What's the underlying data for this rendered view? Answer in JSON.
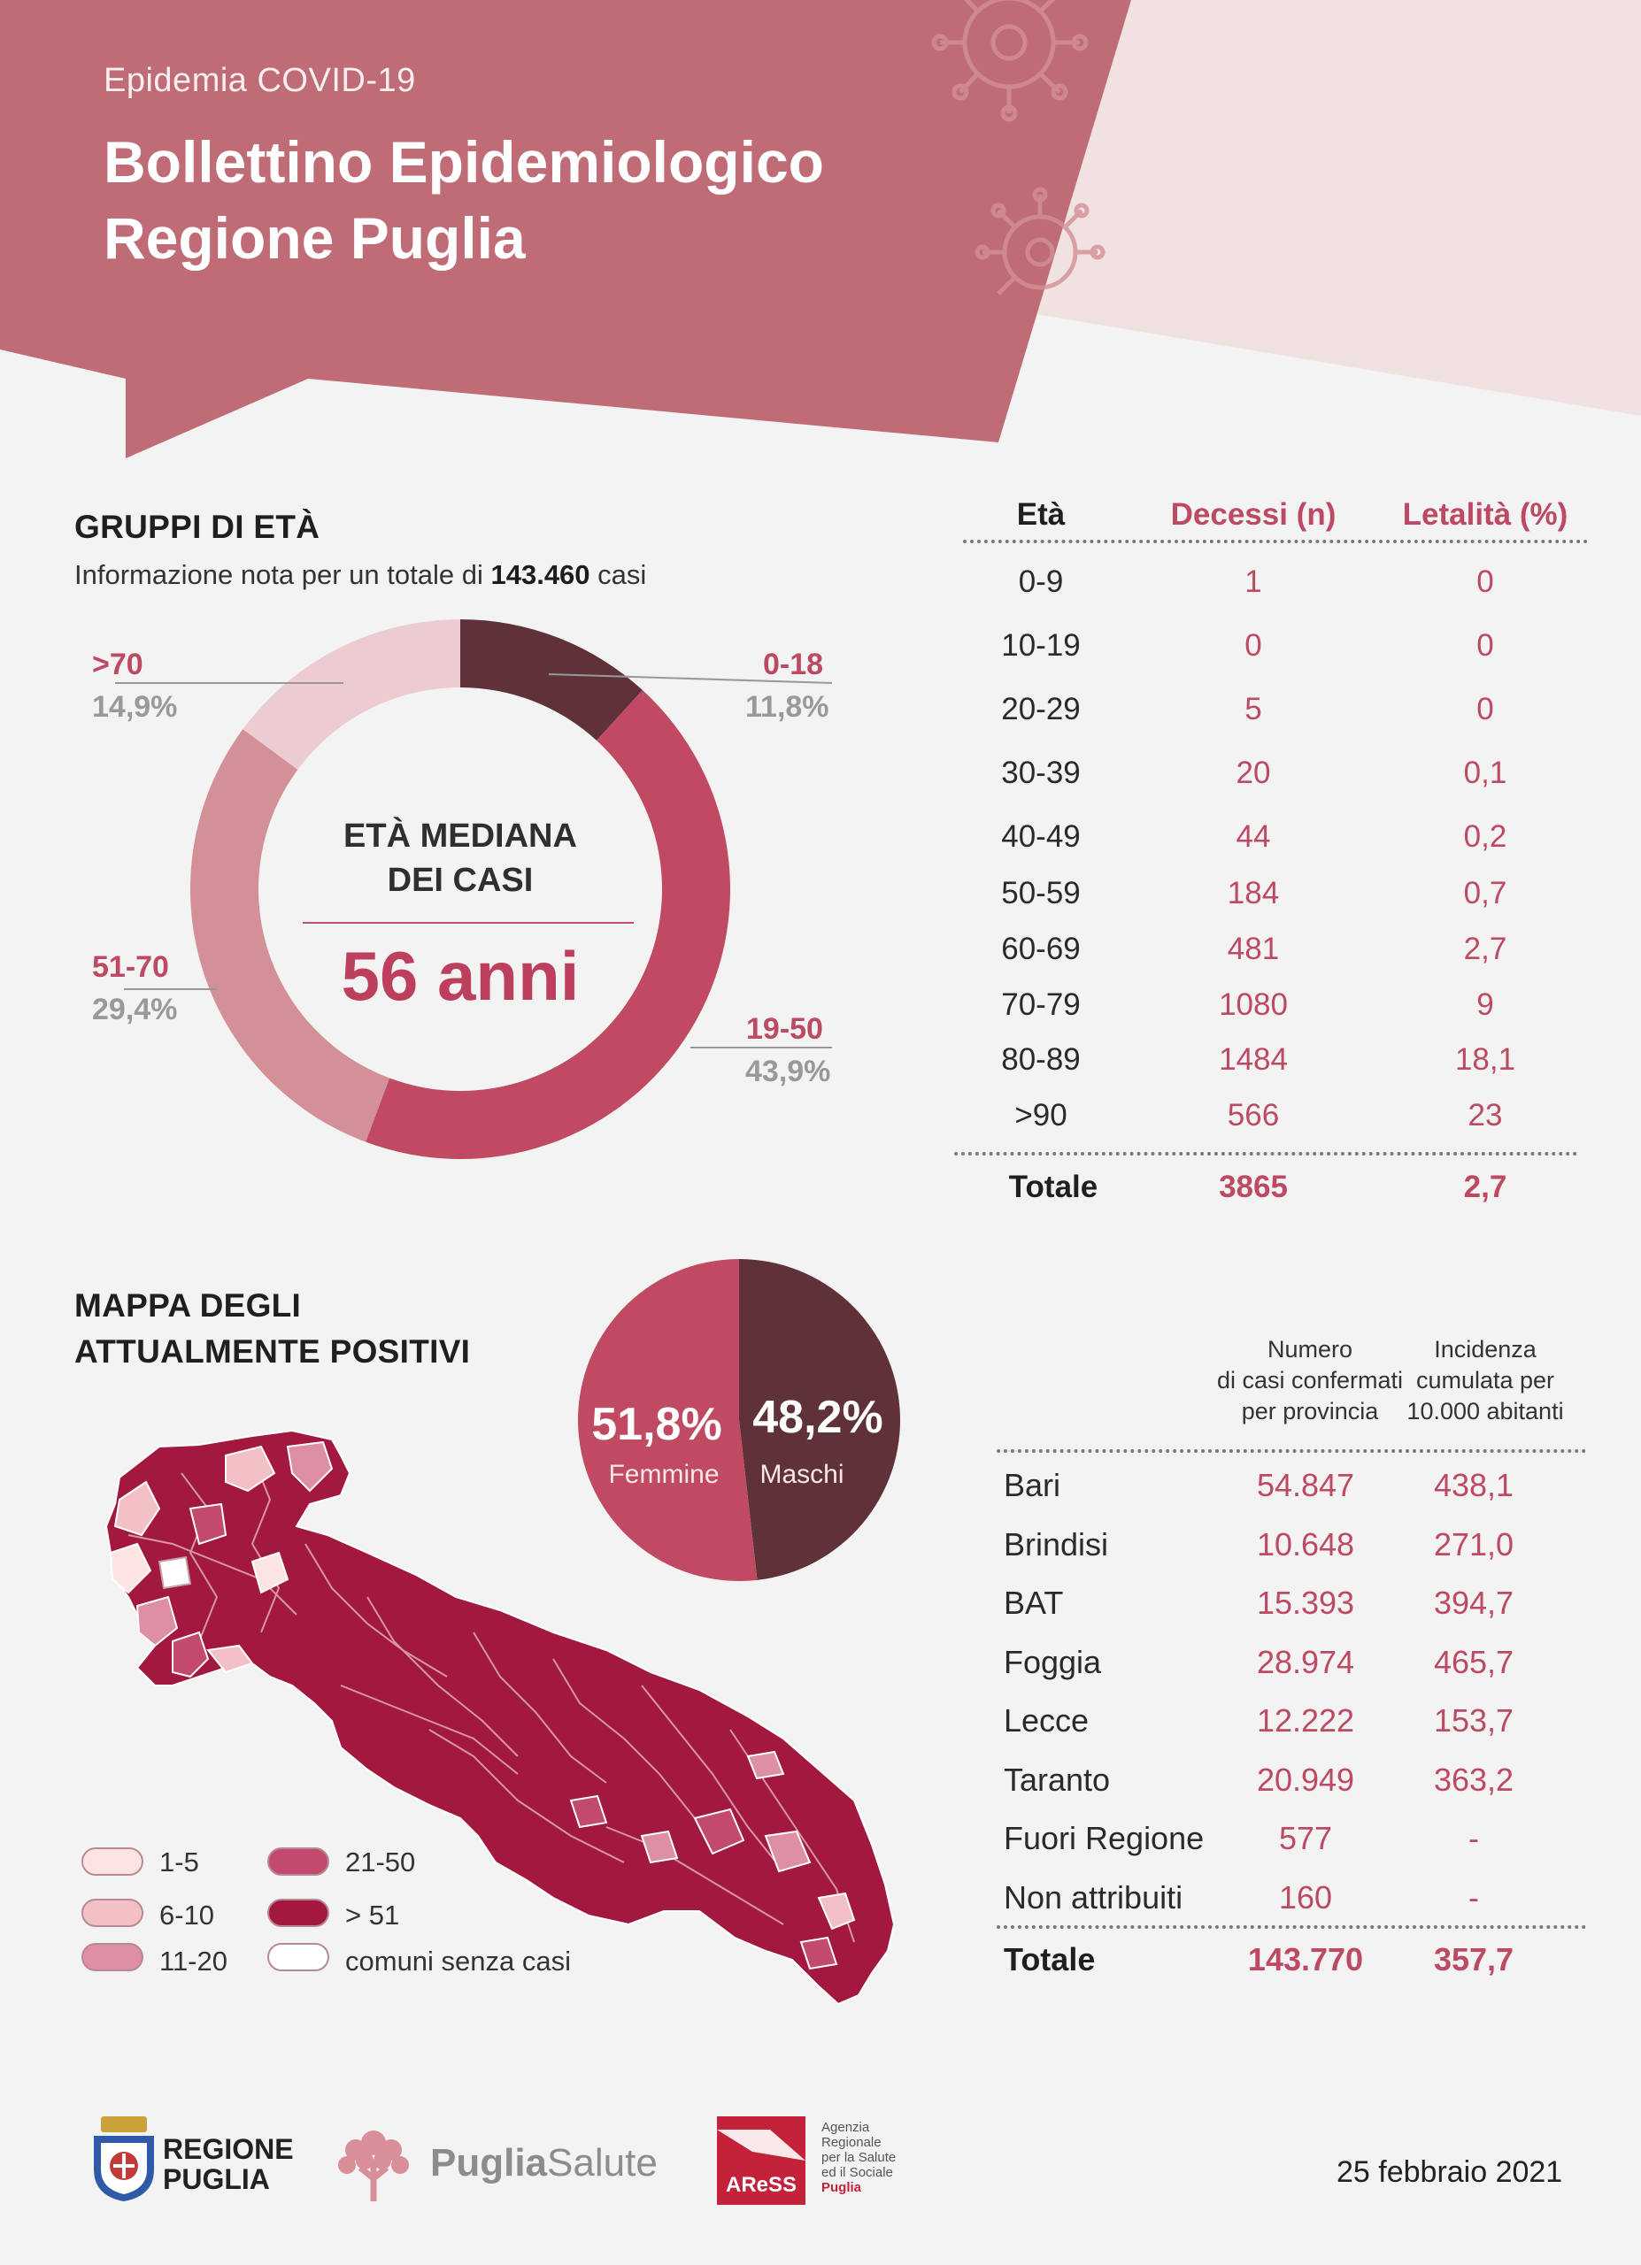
{
  "header": {
    "kicker": "Epidemia COVID-19",
    "title_line1": "Bollettino Epidemiologico",
    "title_line2": "Regione Puglia"
  },
  "age_groups": {
    "title": "GRUPPI DI ETÀ",
    "note_prefix": "Informazione nota per un totale di",
    "note_total": "143.460",
    "note_suffix": "casi",
    "median_label_line1": "ETÀ MEDIANA",
    "median_label_line2": "DEI CASI",
    "median_value": "56 anni",
    "slices": [
      {
        "label": "0-18",
        "pct_text": "11,8%",
        "value": 11.8,
        "color": "#5e3238"
      },
      {
        "label": "19-50",
        "pct_text": "43,9%",
        "value": 43.9,
        "color": "#c04a62"
      },
      {
        "label": "51-70",
        "pct_text": "29,4%",
        "value": 29.4,
        "color": "#d49097"
      },
      {
        "label": ">70",
        "pct_text": "14,9%",
        "value": 14.9,
        "color": "#ecccd1"
      }
    ]
  },
  "deaths_table": {
    "headers": [
      "Età",
      "Decessi (n)",
      "Letalità (%)"
    ],
    "rows": [
      [
        "0-9",
        "1",
        "0"
      ],
      [
        "10-19",
        "0",
        "0"
      ],
      [
        "20-29",
        "5",
        "0"
      ],
      [
        "30-39",
        "20",
        "0,1"
      ],
      [
        "40-49",
        "44",
        "0,2"
      ],
      [
        "50-59",
        "184",
        "0,7"
      ],
      [
        "60-69",
        "481",
        "2,7"
      ],
      [
        "70-79",
        "1080",
        "9"
      ],
      [
        "80-89",
        "1484",
        "18,1"
      ],
      [
        ">90",
        "566",
        "23"
      ]
    ],
    "total": [
      "Totale",
      "3865",
      "2,7"
    ]
  },
  "map_section": {
    "title_line1": "MAPPA DEGLI",
    "title_line2": "ATTUALMENTE POSITIVI",
    "legend": [
      {
        "label": "1-5",
        "color": "#fbe4e2"
      },
      {
        "label": "6-10",
        "color": "#f3c0c5"
      },
      {
        "label": "11-20",
        "color": "#dd8fa3"
      },
      {
        "label": "21-50",
        "color": "#c24a6c"
      },
      {
        "label": "> 51",
        "color": "#a3183f"
      },
      {
        "label": "comuni senza casi",
        "color": "#ffffff"
      }
    ]
  },
  "sex_pie": {
    "female_pct": "51,8%",
    "female_label": "Femmine",
    "female_value": 51.8,
    "male_pct": "48,2%",
    "male_label": "Maschi",
    "male_value": 48.2,
    "female_color": "#c04a62",
    "male_color": "#5e3238"
  },
  "province_table": {
    "header_cases": [
      "Numero",
      "di casi confermati",
      "per provincia"
    ],
    "header_incidence": [
      "Incidenza",
      "cumulata per",
      "10.000 abitanti"
    ],
    "rows": [
      [
        "Bari",
        "54.847",
        "438,1"
      ],
      [
        "Brindisi",
        "10.648",
        "271,0"
      ],
      [
        "BAT",
        "15.393",
        "394,7"
      ],
      [
        "Foggia",
        "28.974",
        "465,7"
      ],
      [
        "Lecce",
        "12.222",
        "153,7"
      ],
      [
        "Taranto",
        "20.949",
        "363,2"
      ],
      [
        "Fuori Regione",
        "577",
        "-"
      ],
      [
        "Non attribuiti",
        "160",
        "-"
      ]
    ],
    "total": [
      "Totale",
      "143.770",
      "357,7"
    ]
  },
  "footer": {
    "regione_line1": "REGIONE",
    "regione_line2": "PUGLIA",
    "pugliasalute_a": "Puglia",
    "pugliasalute_b": "Salute",
    "aress_logo": "AReSS",
    "aress_text": [
      "Agenzia",
      "Regionale",
      "per la Salute",
      "ed il Sociale",
      "Puglia"
    ],
    "date": "25 febbraio 2021"
  },
  "colors": {
    "banner": "#bf6c76",
    "accent": "#bd4a63",
    "banner_light": "#f1e2e2"
  }
}
